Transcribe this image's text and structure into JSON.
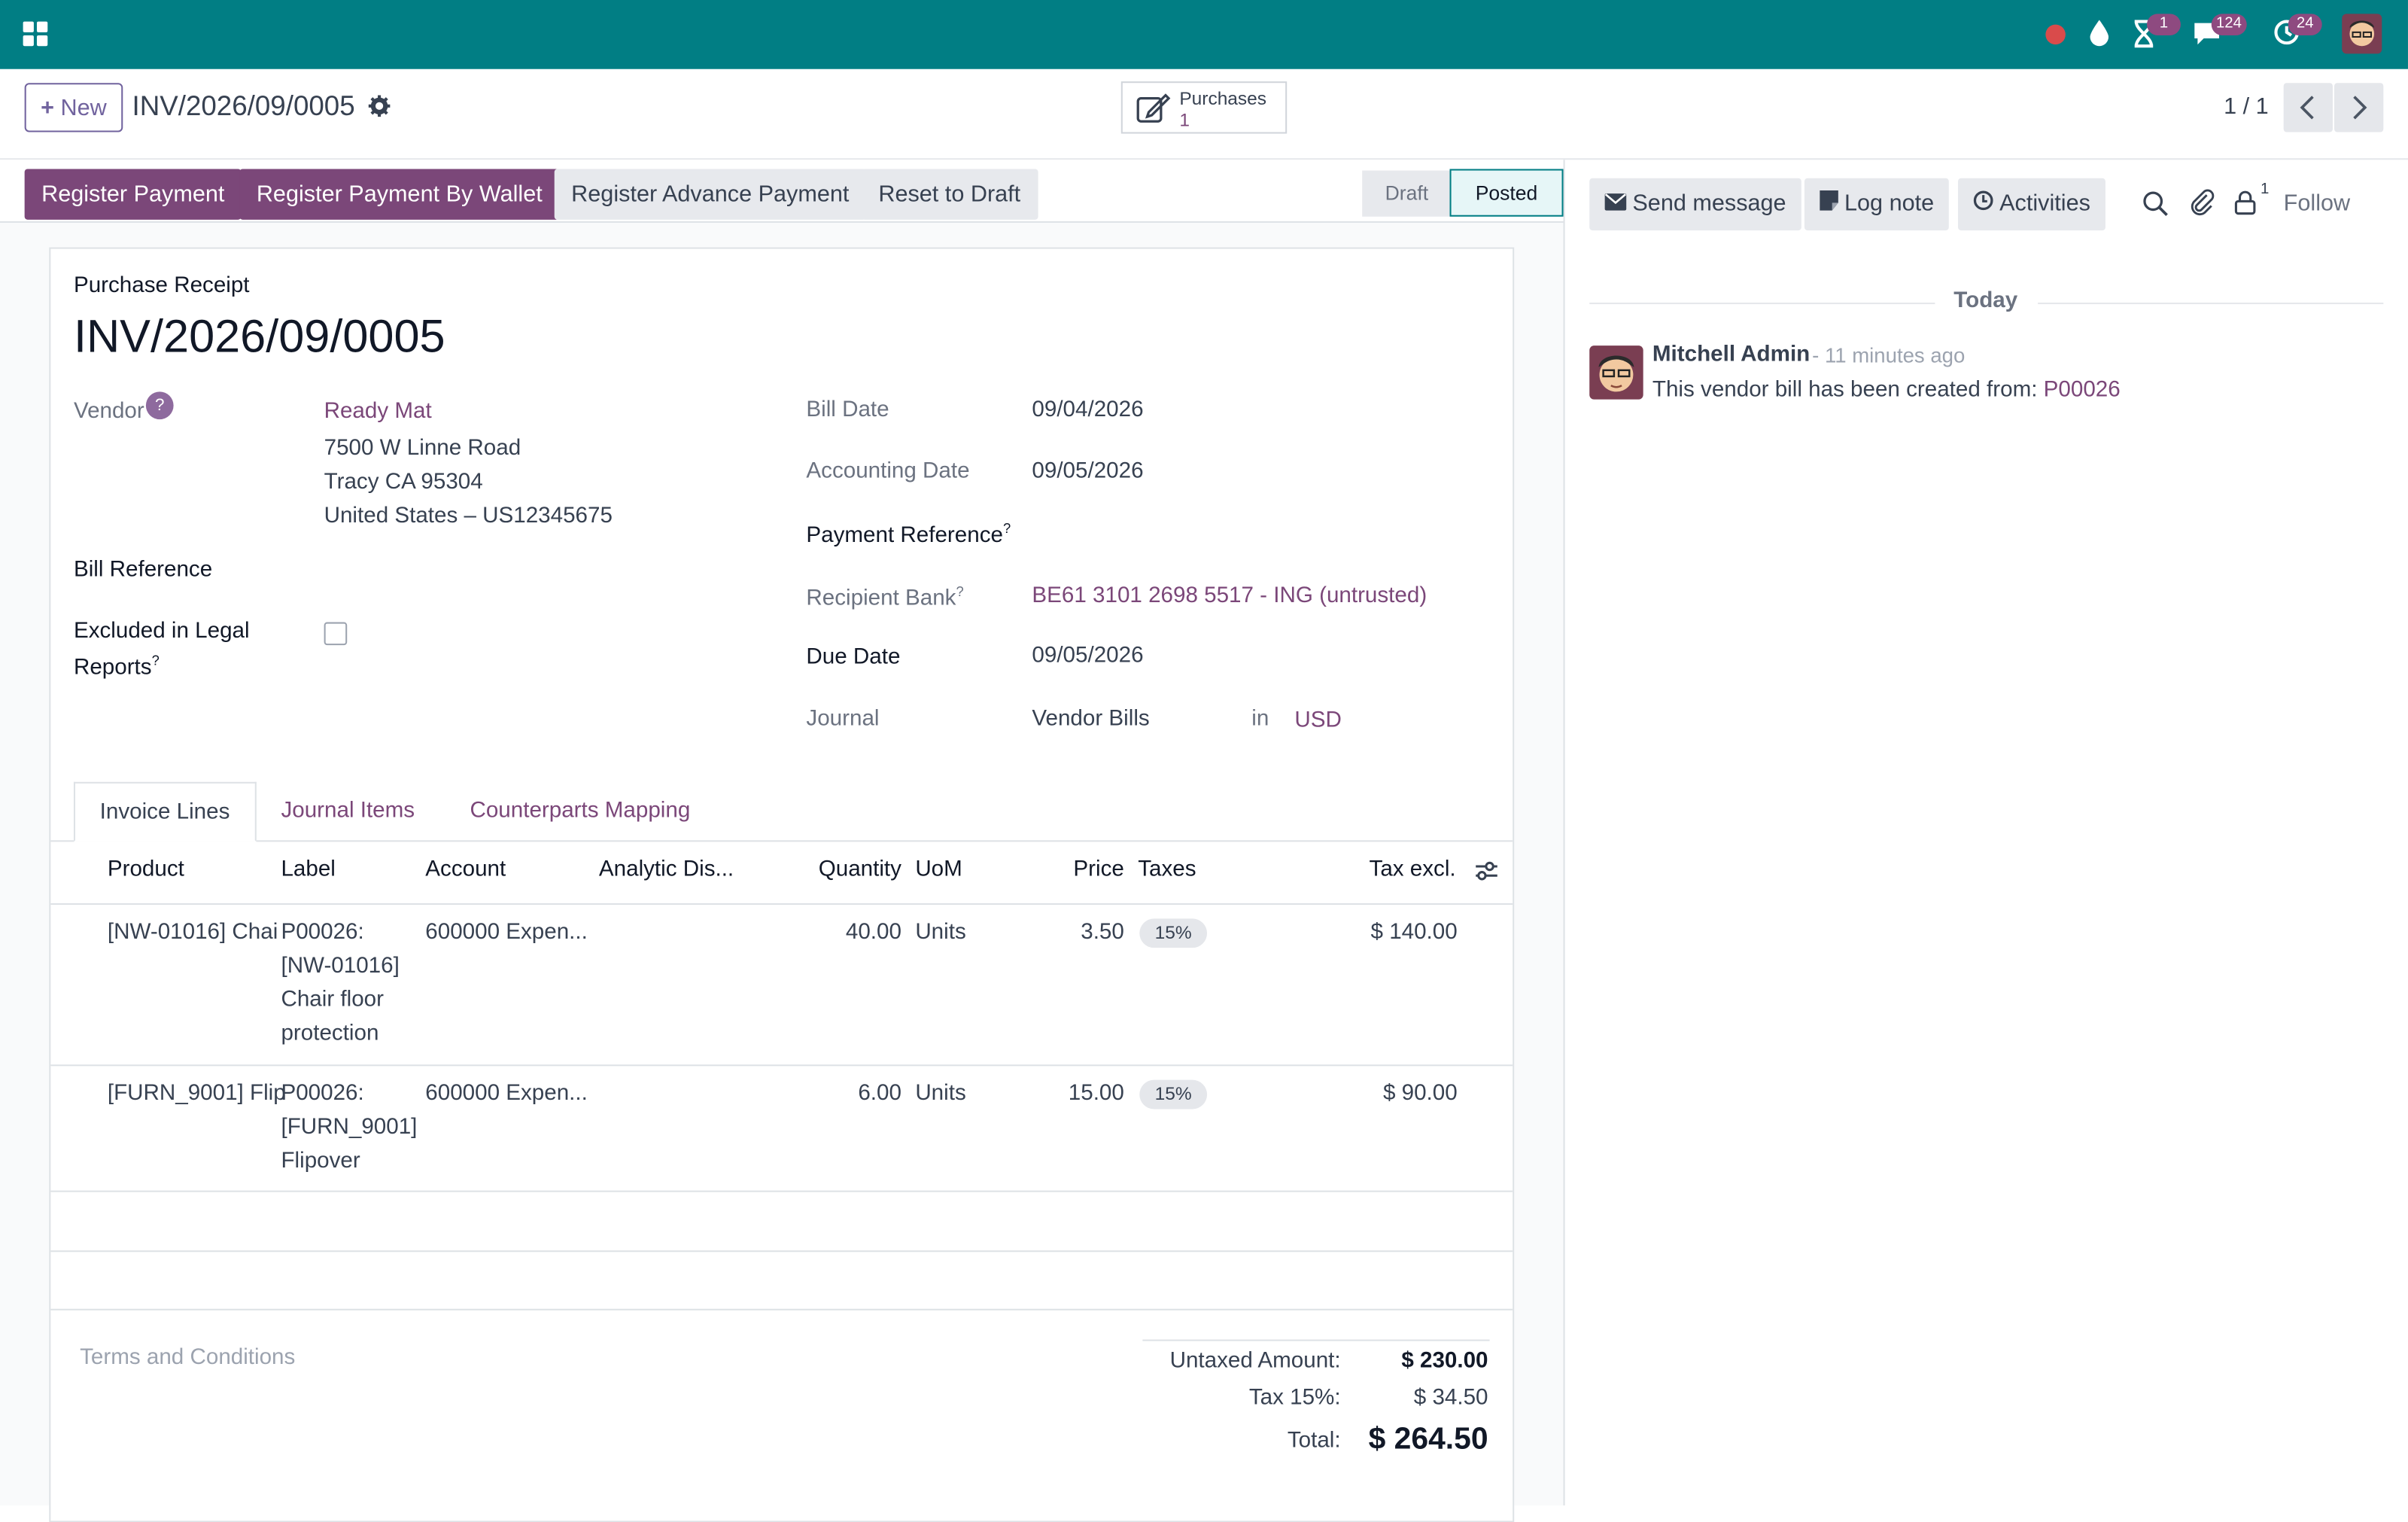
{
  "topbar": {
    "apps_icon": "grid-icon",
    "status_icons": [
      "record-dot-icon",
      "drop-icon",
      "hourglass-icon",
      "chat-icon",
      "refresh-clock-icon"
    ],
    "badges": {
      "activities": "1",
      "messages": "124",
      "updates": "24"
    }
  },
  "control_panel": {
    "new_label": "New",
    "record_title": "INV/2026/09/0005",
    "purchases_label": "Purchases",
    "purchases_count": "1",
    "pager": "1 / 1"
  },
  "status_bar": {
    "buttons": [
      "Register Payment",
      "Register Payment By Wallet",
      "Register Advance Payment",
      "Reset to Draft"
    ],
    "stages": [
      "Draft",
      "Posted"
    ]
  },
  "form": {
    "type_label": "Purchase Receipt",
    "name": "INV/2026/09/0005",
    "vendor_label": "Vendor",
    "vendor_help": "?",
    "vendor_name": "Ready Mat",
    "vendor_address": [
      "7500 W Linne Road",
      "Tracy CA 95304",
      "United States – US12345675"
    ],
    "bill_reference_label": "Bill Reference",
    "excluded_label_1": "Excluded in Legal",
    "excluded_label_2": "Reports",
    "bill_date_label": "Bill Date",
    "bill_date": "09/04/2026",
    "accounting_date_label": "Accounting Date",
    "accounting_date": "09/05/2026",
    "payment_reference_label": "Payment Reference",
    "recipient_bank_label": "Recipient Bank",
    "recipient_bank": "BE61 3101 2698 5517 - ING (untrusted)",
    "due_date_label": "Due Date",
    "due_date": "09/05/2026",
    "journal_label": "Journal",
    "journal": "Vendor Bills",
    "journal_in": "in",
    "currency": "USD",
    "tooltip_mark": "?"
  },
  "tabs": [
    "Invoice Lines",
    "Journal Items",
    "Counterparts Mapping"
  ],
  "lines": {
    "headers": [
      "Product",
      "Label",
      "Account",
      "Analytic Dis...",
      "Quantity",
      "UoM",
      "Price",
      "Taxes",
      "Tax excl."
    ],
    "rows": [
      {
        "product": "[NW-01016] Chai",
        "label": [
          "P00026:",
          "[NW-01016]",
          "Chair floor",
          "protection"
        ],
        "account": "600000 Expen...",
        "quantity": "40.00",
        "uom": "Units",
        "price": "3.50",
        "tax": "15%",
        "subtotal": "$ 140.00"
      },
      {
        "product": "[FURN_9001] Flip",
        "label": [
          "P00026:",
          "[FURN_9001]",
          "Flipover"
        ],
        "account": "600000 Expen...",
        "quantity": "6.00",
        "uom": "Units",
        "price": "15.00",
        "tax": "15%",
        "subtotal": "$ 90.00"
      }
    ]
  },
  "footer": {
    "terms_placeholder": "Terms and Conditions",
    "untaxed_label": "Untaxed Amount:",
    "untaxed_value": "$ 230.00",
    "tax_label": "Tax 15%:",
    "tax_value": "$ 34.50",
    "total_label": "Total:",
    "total_value": "$ 264.50"
  },
  "chatter": {
    "send_message": "Send message",
    "log_note": "Log note",
    "activities": "Activities",
    "followers_count": "1",
    "follow": "Follow",
    "today": "Today",
    "author": "Mitchell Admin",
    "time": "- 11 minutes ago",
    "message_text": "This vendor bill has been created from: ",
    "message_link": "P00026"
  }
}
